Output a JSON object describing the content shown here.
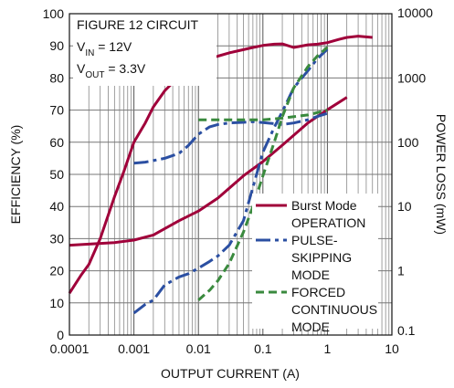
{
  "chart_data": {
    "type": "line",
    "title": "",
    "xlabel": "OUTPUT CURRENT (A)",
    "ylabel": "EFFICIENCY (%)",
    "y2label": "POWER LOSS (mW)",
    "xscale": "log",
    "xlim": [
      0.0001,
      10
    ],
    "ylim": [
      0,
      100
    ],
    "y2scale": "log",
    "y2lim": [
      0.1,
      10000
    ],
    "grid": true,
    "x_tick_labels": [
      "0.0001",
      "0.001",
      "0.01",
      "0.1",
      "1",
      "10"
    ],
    "y_tick_labels": [
      "0",
      "10",
      "20",
      "30",
      "40",
      "50",
      "60",
      "70",
      "80",
      "90",
      "100"
    ],
    "y2_tick_labels": [
      "0.1",
      "1",
      "10",
      "100",
      "1000",
      "10000"
    ],
    "annotation": {
      "line1": "FIGURE 12 CIRCUIT",
      "line2_main": "V",
      "line2_sub": "IN",
      "line2_rest": " = 12V",
      "line3_main": "V",
      "line3_sub": "OUT",
      "line3_rest": " = 3.3V"
    },
    "legend_placement": "center-right",
    "series": [
      {
        "name": "Burst Mode OPERATION",
        "legend_lines": [
          "Burst Mode",
          "OPERATION"
        ],
        "color": "#a0003a",
        "dash": "solid",
        "efficiency": {
          "x": [
            0.0001,
            0.00015,
            0.0002,
            0.0003,
            0.0005,
            0.0007,
            0.001,
            0.0015,
            0.002,
            0.003,
            0.005,
            0.007,
            0.01,
            0.015,
            0.02,
            0.03,
            0.05,
            0.07,
            0.1,
            0.15,
            0.2,
            0.3,
            0.5,
            0.7,
            1,
            1.5,
            2,
            3,
            5
          ],
          "y": [
            13,
            18.5,
            22,
            30,
            43,
            51,
            60,
            66,
            71,
            76,
            80.5,
            83.5,
            85,
            86,
            86.8,
            87.8,
            88.8,
            89.5,
            90.1,
            90.5,
            90.6,
            89.5,
            90.3,
            90.5,
            91,
            92,
            92.6,
            93,
            92.6
          ]
        },
        "power_loss": {
          "x": [
            0.0001,
            0.0002,
            0.0005,
            0.001,
            0.002,
            0.005,
            0.01,
            0.02,
            0.05,
            0.1,
            0.2,
            0.5,
            1,
            2
          ],
          "y": [
            2.5,
            2.6,
            2.75,
            3,
            3.6,
            6,
            8.5,
            13.5,
            30,
            50,
            90,
            200,
            320,
            500
          ]
        }
      },
      {
        "name": "PULSE-SKIPPING MODE",
        "legend_lines": [
          "PULSE-",
          "SKIPPING",
          "MODE"
        ],
        "color": "#2b4fa2",
        "dash": "long-dash-dot",
        "efficiency": {
          "x": [
            0.001,
            0.0015,
            0.002,
            0.003,
            0.005,
            0.007,
            0.01,
            0.015,
            0.02,
            0.03,
            0.05,
            0.07,
            0.1,
            0.15,
            0.2,
            0.3,
            0.5,
            0.7,
            1
          ],
          "y": [
            53.5,
            53.8,
            54.3,
            55,
            56.5,
            59,
            62.5,
            64.8,
            65.5,
            66,
            66.2,
            66.4,
            66.1,
            65.8,
            65.5,
            66,
            67,
            68,
            69
          ]
        },
        "power_loss": {
          "x": [
            0.001,
            0.0015,
            0.002,
            0.003,
            0.005,
            0.007,
            0.01,
            0.015,
            0.02,
            0.03,
            0.05,
            0.07,
            0.1,
            0.15,
            0.2,
            0.3,
            0.5,
            0.7,
            1
          ],
          "y": [
            0.22,
            0.3,
            0.35,
            0.6,
            0.8,
            0.9,
            1.1,
            1.4,
            1.7,
            2.5,
            6,
            20,
            70,
            170,
            300,
            700,
            1300,
            2000,
            2800
          ]
        }
      },
      {
        "name": "FORCED CONTINUOUS MODE",
        "legend_lines": [
          "FORCED",
          "CONTINUOUS",
          "MODE"
        ],
        "color": "#3a8a3e",
        "dash": "dashed",
        "efficiency": {
          "x": [
            0.01,
            0.02,
            0.05,
            0.1,
            0.2,
            0.5,
            1
          ],
          "y": [
            67,
            67,
            67,
            67,
            67.5,
            68.5,
            70
          ]
        },
        "power_loss": {
          "x": [
            0.01,
            0.015,
            0.02,
            0.03,
            0.05,
            0.07,
            0.1,
            0.15,
            0.2,
            0.3,
            0.5,
            0.7,
            1
          ],
          "y": [
            0.35,
            0.5,
            0.7,
            1.3,
            4,
            10,
            30,
            100,
            250,
            700,
            1500,
            2200,
            3000
          ]
        }
      }
    ]
  }
}
